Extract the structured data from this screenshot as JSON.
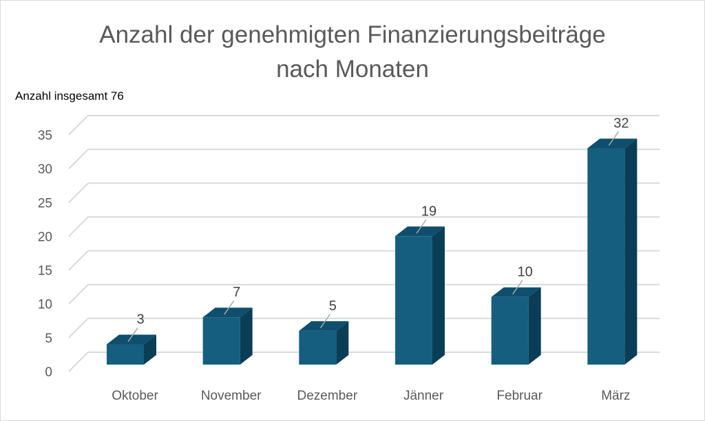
{
  "chart_data": {
    "type": "bar",
    "title_lines": [
      "Anzahl der genehmigten Finanzierungsbeiträge",
      "nach Monaten"
    ],
    "subtitle": "Anzahl insgesamt 76",
    "categories": [
      "Oktober",
      "November",
      "Dezember",
      "Jänner",
      "Februar",
      "März"
    ],
    "values": [
      3,
      7,
      5,
      19,
      10,
      32
    ],
    "ylim": [
      0,
      35
    ],
    "yticks": [
      0,
      5,
      10,
      15,
      20,
      25,
      30,
      35
    ],
    "grid": true,
    "legend": "none",
    "data_labels": true,
    "colors": {
      "bar_front": "#155e80",
      "bar_top": "#0f4f6d",
      "bar_side": "#0a3e56",
      "grid": "#d9d9d9",
      "leader": "#a6a6a6"
    }
  }
}
